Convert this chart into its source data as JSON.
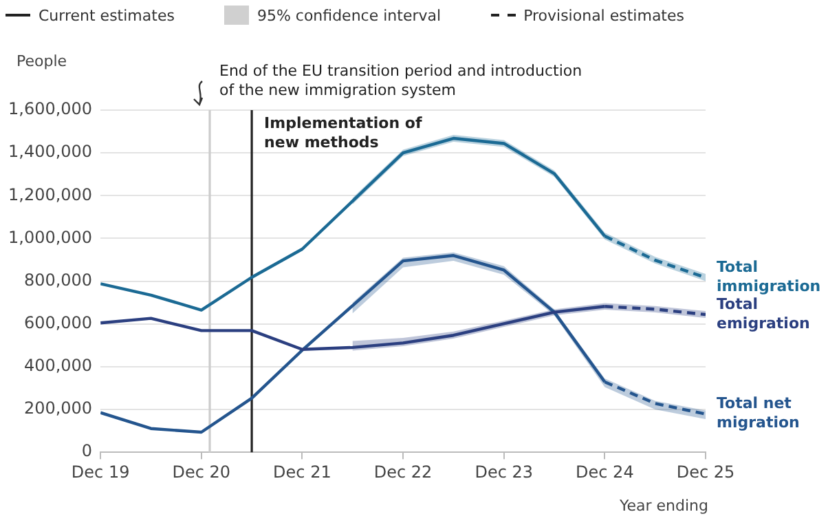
{
  "chart_data": {
    "type": "line",
    "ylabel": "People",
    "xlabel": "Year ending",
    "annotations": [
      "Current estimates",
      "95% confidence interval",
      "Provisional estimates"
    ],
    "xlim": [
      "2019-12",
      "2025-12"
    ],
    "xticks": [
      {
        "value": "2019-12",
        "label": "Dec 19"
      },
      {
        "value": "2020-12",
        "label": "Dec 20"
      },
      {
        "value": "2021-12",
        "label": "Dec 21"
      },
      {
        "value": "2022-12",
        "label": "Dec 22"
      },
      {
        "value": "2023-12",
        "label": "Dec 23"
      },
      {
        "value": "2024-12",
        "label": "Dec 24"
      },
      {
        "value": "2025-12",
        "label": "Dec 25"
      }
    ],
    "ylim": [
      0,
      1600000
    ],
    "yticks": [
      {
        "value": 0,
        "label": "0"
      },
      {
        "value": 200000,
        "label": "200,000"
      },
      {
        "value": 400000,
        "label": "400,000"
      },
      {
        "value": 600000,
        "label": "600,000"
      },
      {
        "value": 800000,
        "label": "800,000"
      },
      {
        "value": 1000000,
        "label": "1,000,000"
      },
      {
        "value": 1200000,
        "label": "1,200,000"
      },
      {
        "value": 1400000,
        "label": "1,400,000"
      },
      {
        "value": 1600000,
        "label": "1,600,000"
      }
    ],
    "grid": "y",
    "legend": "top",
    "marker": "none",
    "ref_lines": [
      {
        "axis": "x",
        "value": "2021-01",
        "label": "End of the EU transition period and introduction of the new immigration system",
        "color": "#cccccc"
      },
      {
        "axis": "x",
        "value": "2021-06",
        "label": "Implementation of new methods",
        "color": "#222222"
      }
    ],
    "series": [
      {
        "color": "#1b6a94",
        "line_style": "solid",
        "x": [
          "2019-12",
          "2020-06",
          "2020-12",
          "2021-06",
          "2021-12",
          "2022-06",
          "2022-12",
          "2023-06",
          "2023-12",
          "2024-06",
          "2024-12"
        ],
        "values": [
          788000,
          735000,
          665000,
          818000,
          950000,
          1175000,
          1400000,
          1468000,
          1444000,
          1303000,
          1011000
        ],
        "lower": [
          null,
          null,
          null,
          null,
          null,
          1160000,
          1385000,
          1452000,
          1428000,
          1288000,
          995000
        ],
        "upper": [
          null,
          null,
          null,
          null,
          null,
          1190000,
          1415000,
          1484000,
          1460000,
          1318000,
          1027000
        ]
      },
      {
        "name": "Total immigration",
        "color": "#1b6a94",
        "line_style": "dashed",
        "x": [
          "2024-12",
          "2025-06",
          "2025-12"
        ],
        "values": [
          1011000,
          898000,
          817000
        ],
        "lower": [
          995000,
          882000,
          800000
        ],
        "upper": [
          1027000,
          914000,
          834000
        ]
      },
      {
        "color": "#2b3f80",
        "line_style": "solid",
        "x": [
          "2019-12",
          "2020-06",
          "2020-12",
          "2021-06",
          "2021-12",
          "2022-06",
          "2022-12",
          "2023-06",
          "2023-12",
          "2024-06",
          "2024-12"
        ],
        "values": [
          605000,
          626000,
          569000,
          569000,
          481000,
          490000,
          511000,
          547000,
          601000,
          655000,
          682000
        ],
        "lower": [
          null,
          null,
          null,
          null,
          null,
          475000,
          496000,
          532000,
          586000,
          640000,
          667000
        ],
        "upper": [
          null,
          null,
          null,
          null,
          null,
          520000,
          535000,
          565000,
          615000,
          668000,
          697000
        ]
      },
      {
        "name": "Total emigration",
        "color": "#2b3f80",
        "line_style": "dashed",
        "x": [
          "2024-12",
          "2025-06",
          "2025-12"
        ],
        "values": [
          682000,
          669000,
          644000
        ],
        "lower": [
          667000,
          654000,
          628000
        ],
        "upper": [
          697000,
          684000,
          660000
        ]
      },
      {
        "color": "#24558e",
        "line_style": "solid",
        "x": [
          "2019-12",
          "2020-06",
          "2020-12",
          "2021-06",
          "2021-12",
          "2022-06",
          "2022-12",
          "2023-06",
          "2023-12",
          "2024-06",
          "2024-12"
        ],
        "values": [
          185000,
          111000,
          94000,
          253000,
          477000,
          686000,
          895000,
          920000,
          852000,
          655000,
          329000
        ],
        "lower": [
          null,
          null,
          null,
          null,
          null,
          650000,
          865000,
          895000,
          830000,
          640000,
          305000
        ],
        "upper": [
          null,
          null,
          null,
          null,
          null,
          700000,
          910000,
          935000,
          870000,
          668000,
          345000
        ]
      },
      {
        "name": "Total net migration",
        "color": "#24558e",
        "line_style": "dashed",
        "x": [
          "2024-12",
          "2025-06",
          "2025-12"
        ],
        "values": [
          329000,
          228000,
          179000
        ],
        "lower": [
          305000,
          200000,
          155000
        ],
        "upper": [
          345000,
          240000,
          195000
        ]
      }
    ]
  }
}
